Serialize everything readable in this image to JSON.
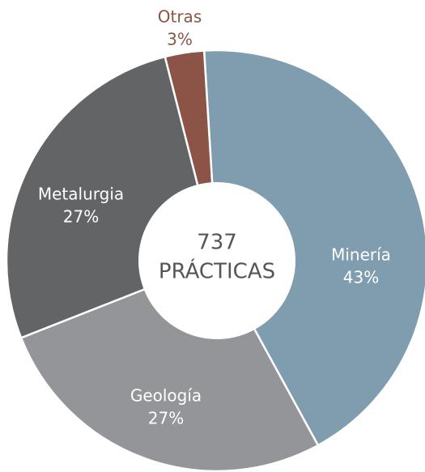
{
  "chart_data": {
    "type": "donut",
    "center_text": [
      "737",
      "PRÁCTICAS"
    ],
    "categories": [
      "Minería",
      "Geología",
      "Metalurgia",
      "Otras"
    ],
    "values": [
      43,
      27,
      27,
      3
    ],
    "value_labels": [
      "43%",
      "27%",
      "27%",
      "3%"
    ],
    "colors": [
      "#7f9dae",
      "#939598",
      "#636466",
      "#8b5446"
    ]
  }
}
